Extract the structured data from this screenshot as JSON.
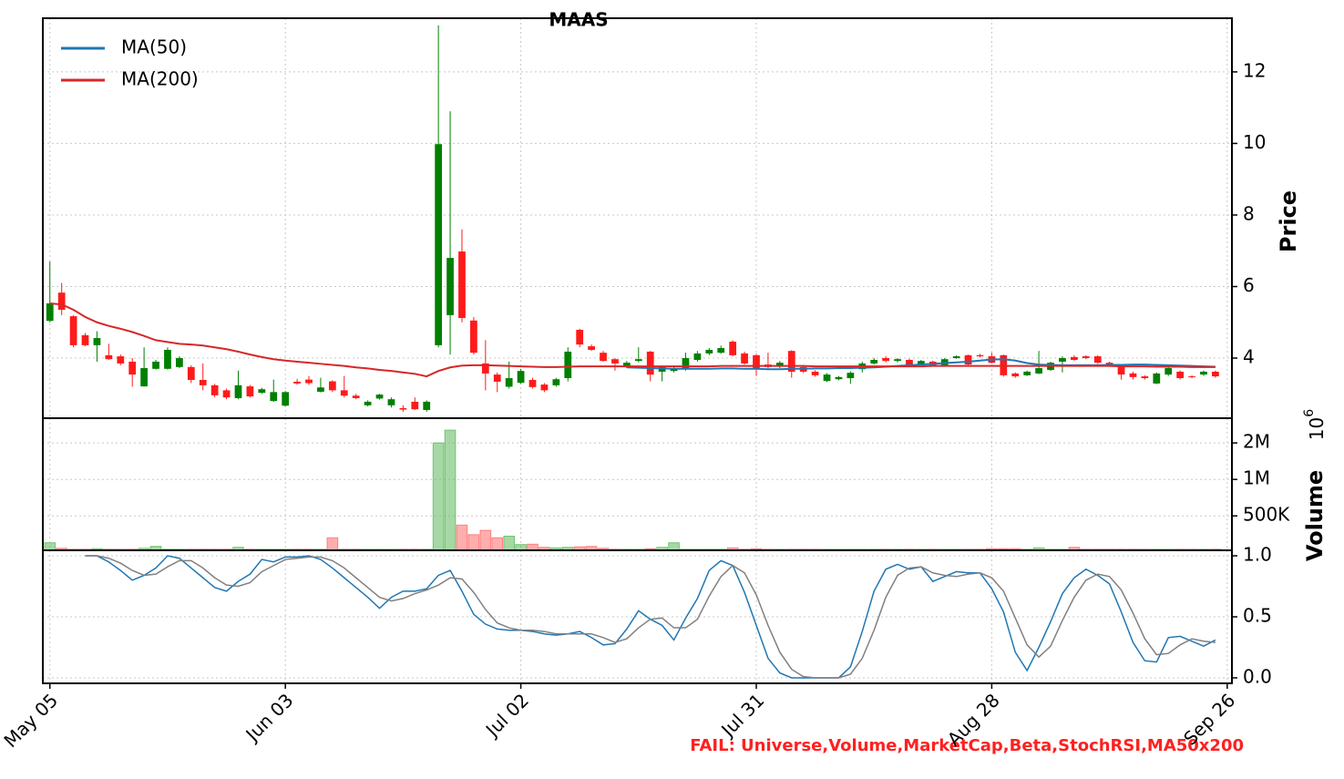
{
  "chart_data": {
    "type": "candlestick",
    "title": "MAAS",
    "xlim": [
      -0.6,
      100.4
    ],
    "xticks": [
      {
        "value": 0,
        "label": "May 05"
      },
      {
        "value": 20,
        "label": "Jun 03"
      },
      {
        "value": 40,
        "label": "Jul 02"
      },
      {
        "value": 60,
        "label": "Jul 31"
      },
      {
        "value": 80,
        "label": "Aug 28"
      },
      {
        "value": 100,
        "label": "Sep 26"
      }
    ],
    "grid": true,
    "price": {
      "ylabel": "Price",
      "ylim": [
        2.32,
        13.5
      ],
      "yticks": [
        4,
        6,
        8,
        10,
        12
      ],
      "up_color": "#008000",
      "down_color": "#ff1a1a",
      "legend": "upper left",
      "open": [
        5.04,
        5.83,
        5.17,
        4.64,
        4.36,
        4.08,
        4.05,
        3.9,
        3.21,
        3.7,
        3.7,
        3.75,
        3.75,
        3.39,
        3.24,
        3.1,
        2.88,
        3.21,
        3.03,
        2.8,
        2.67,
        3.34,
        3.4,
        3.06,
        3.35,
        3.1,
        2.95,
        2.68,
        2.87,
        2.68,
        2.6,
        2.78,
        2.55,
        4.36,
        5.2,
        6.98,
        5.05,
        3.85,
        3.54,
        3.2,
        3.31,
        3.39,
        3.26,
        3.24,
        3.44,
        4.79,
        4.33,
        4.15,
        3.97,
        3.77,
        3.92,
        4.18,
        3.62,
        3.64,
        3.69,
        3.95,
        4.13,
        4.15,
        4.46,
        4.13,
        4.08,
        3.82,
        3.77,
        4.2,
        3.75,
        3.62,
        3.36,
        3.41,
        3.44,
        3.69,
        3.85,
        4.0,
        3.92,
        3.95,
        3.82,
        3.9,
        3.8,
        4.0,
        4.08,
        4.08,
        4.05,
        4.08,
        3.57,
        3.52,
        3.57,
        3.67,
        3.9,
        4.03,
        4.05,
        4.05,
        3.87,
        3.77,
        3.57,
        3.49,
        3.29,
        3.54,
        3.62,
        3.49,
        3.54,
        3.62
      ],
      "high": [
        6.7,
        6.1,
        5.2,
        4.7,
        4.75,
        4.4,
        4.1,
        4.0,
        4.3,
        3.95,
        4.3,
        4.05,
        3.8,
        3.85,
        3.28,
        3.15,
        3.65,
        3.25,
        3.17,
        3.4,
        3.08,
        3.42,
        3.5,
        3.45,
        3.38,
        3.5,
        3.0,
        2.82,
        3.0,
        2.9,
        2.68,
        2.9,
        2.82,
        13.3,
        10.9,
        7.6,
        5.15,
        4.5,
        3.6,
        3.9,
        3.7,
        3.45,
        3.3,
        3.45,
        4.3,
        4.82,
        4.38,
        4.2,
        4.0,
        3.92,
        4.3,
        4.2,
        3.8,
        3.8,
        4.15,
        4.2,
        4.28,
        4.35,
        4.5,
        4.18,
        4.12,
        4.15,
        3.92,
        4.22,
        3.8,
        3.66,
        3.58,
        3.5,
        3.63,
        3.9,
        4.0,
        4.05,
        4.0,
        3.98,
        3.95,
        3.93,
        4.0,
        4.08,
        4.1,
        4.12,
        4.15,
        4.1,
        3.6,
        3.65,
        4.2,
        3.9,
        4.05,
        4.08,
        4.08,
        4.08,
        3.9,
        3.8,
        3.62,
        3.52,
        3.6,
        3.75,
        3.65,
        3.52,
        3.65,
        3.65
      ],
      "low": [
        5.0,
        5.2,
        4.3,
        4.33,
        3.9,
        3.95,
        3.8,
        3.2,
        3.2,
        3.68,
        3.68,
        3.72,
        3.3,
        3.1,
        2.9,
        2.85,
        2.85,
        2.9,
        3.0,
        2.78,
        2.65,
        3.25,
        3.25,
        3.04,
        3.05,
        2.9,
        2.85,
        2.65,
        2.84,
        2.62,
        2.5,
        2.55,
        2.5,
        4.3,
        4.1,
        5.0,
        4.1,
        3.1,
        3.05,
        3.15,
        3.28,
        3.15,
        3.05,
        3.2,
        3.35,
        4.3,
        4.2,
        3.9,
        3.65,
        3.72,
        3.88,
        3.35,
        3.35,
        3.6,
        3.65,
        3.9,
        4.08,
        4.12,
        4.05,
        3.82,
        3.5,
        3.7,
        3.72,
        3.45,
        3.58,
        3.48,
        3.33,
        3.38,
        3.28,
        3.6,
        3.82,
        3.88,
        3.88,
        3.78,
        3.8,
        3.76,
        3.77,
        3.98,
        3.8,
        4.02,
        3.85,
        3.48,
        3.45,
        3.5,
        3.55,
        3.64,
        3.6,
        3.92,
        3.97,
        3.84,
        3.78,
        3.4,
        3.4,
        3.4,
        3.27,
        3.5,
        3.4,
        3.44,
        3.5,
        3.45
      ],
      "close": [
        5.53,
        5.35,
        4.36,
        4.36,
        4.56,
        3.97,
        3.85,
        3.54,
        3.72,
        3.9,
        4.23,
        4.0,
        3.39,
        3.24,
        2.96,
        2.9,
        3.24,
        2.93,
        3.13,
        3.05,
        3.05,
        3.29,
        3.3,
        3.18,
        3.1,
        2.95,
        2.88,
        2.78,
        2.98,
        2.85,
        2.56,
        2.57,
        2.78,
        9.98,
        6.8,
        5.12,
        4.15,
        3.57,
        3.34,
        3.44,
        3.64,
        3.19,
        3.1,
        3.41,
        4.18,
        4.38,
        4.23,
        3.92,
        3.85,
        3.87,
        3.97,
        3.54,
        3.75,
        3.72,
        4.0,
        4.13,
        4.23,
        4.28,
        4.08,
        3.85,
        3.7,
        3.75,
        3.87,
        3.62,
        3.62,
        3.52,
        3.54,
        3.47,
        3.59,
        3.85,
        3.95,
        3.92,
        3.97,
        3.82,
        3.92,
        3.8,
        3.97,
        4.05,
        3.82,
        4.05,
        3.87,
        3.52,
        3.49,
        3.62,
        3.72,
        3.87,
        4.0,
        3.95,
        4.0,
        3.87,
        3.82,
        3.54,
        3.47,
        3.44,
        3.57,
        3.72,
        3.44,
        3.47,
        3.62,
        3.49
      ],
      "series": [
        {
          "name": "MA(50)",
          "color": "#1f77b4",
          "values": [
            null,
            null,
            null,
            null,
            null,
            null,
            null,
            null,
            null,
            null,
            null,
            null,
            null,
            null,
            null,
            null,
            null,
            null,
            null,
            null,
            null,
            null,
            null,
            null,
            null,
            null,
            null,
            null,
            null,
            null,
            null,
            null,
            null,
            null,
            null,
            null,
            null,
            null,
            null,
            null,
            null,
            null,
            null,
            null,
            null,
            null,
            null,
            null,
            null,
            3.74,
            3.73,
            3.72,
            3.71,
            3.7,
            3.7,
            3.7,
            3.7,
            3.71,
            3.71,
            3.7,
            3.7,
            3.69,
            3.69,
            3.7,
            3.7,
            3.71,
            3.71,
            3.72,
            3.72,
            3.73,
            3.74,
            3.76,
            3.78,
            3.8,
            3.82,
            3.84,
            3.86,
            3.88,
            3.9,
            3.93,
            3.96,
            3.97,
            3.93,
            3.86,
            3.82,
            3.81,
            3.8,
            3.8,
            3.8,
            3.8,
            3.81,
            3.81,
            3.82,
            3.82,
            3.81,
            3.8,
            3.79,
            3.78,
            3.77,
            3.76
          ]
        },
        {
          "name": "MA(200)",
          "color": "#d62728",
          "values": [
            5.53,
            5.5,
            5.35,
            5.15,
            5.0,
            4.9,
            4.82,
            4.73,
            4.62,
            4.5,
            4.45,
            4.4,
            4.38,
            4.35,
            4.3,
            4.25,
            4.18,
            4.1,
            4.03,
            3.97,
            3.93,
            3.9,
            3.87,
            3.84,
            3.81,
            3.78,
            3.74,
            3.71,
            3.67,
            3.64,
            3.6,
            3.56,
            3.49,
            3.64,
            3.74,
            3.79,
            3.8,
            3.8,
            3.79,
            3.78,
            3.77,
            3.76,
            3.75,
            3.75,
            3.76,
            3.77,
            3.77,
            3.77,
            3.77,
            3.77,
            3.77,
            3.77,
            3.77,
            3.77,
            3.77,
            3.77,
            3.77,
            3.78,
            3.78,
            3.78,
            3.78,
            3.78,
            3.78,
            3.78,
            3.78,
            3.77,
            3.77,
            3.77,
            3.77,
            3.77,
            3.77,
            3.77,
            3.77,
            3.77,
            3.77,
            3.78,
            3.78,
            3.78,
            3.78,
            3.78,
            3.78,
            3.78,
            3.78,
            3.78,
            3.78,
            3.78,
            3.78,
            3.78,
            3.78,
            3.78,
            3.78,
            3.77,
            3.77,
            3.77,
            3.76,
            3.76,
            3.76,
            3.75,
            3.75,
            3.75
          ]
        }
      ]
    },
    "volume": {
      "ylabel": "Volume",
      "offset_label": {
        "base": "10",
        "exponent": "6"
      },
      "log_scale": true,
      "ylim": [
        260000,
        3200000
      ],
      "yticks": [
        {
          "value": 500000,
          "label": "500K"
        },
        {
          "value": 1000000,
          "label": "1M"
        },
        {
          "value": 2000000,
          "label": "2M"
        }
      ],
      "up_color": "#5cb85c",
      "down_color": "#ff6b6b",
      "values": [
        300000,
        270000,
        265000,
        265000,
        268000,
        265000,
        265000,
        265000,
        270000,
        280000,
        265000,
        265000,
        265000,
        265000,
        265000,
        265000,
        275000,
        265000,
        265000,
        265000,
        265000,
        265000,
        265000,
        265000,
        330000,
        265000,
        265000,
        265000,
        265000,
        265000,
        265000,
        265000,
        265000,
        2000000,
        2550000,
        420000,
        350000,
        380000,
        330000,
        340000,
        290000,
        292000,
        275000,
        272000,
        275000,
        278000,
        280000,
        270000,
        265000,
        265000,
        265000,
        268000,
        275000,
        300000,
        265000,
        265000,
        265000,
        265000,
        272000,
        265000,
        268000,
        265000,
        265000,
        265000,
        265000,
        265000,
        265000,
        265000,
        265000,
        265000,
        265000,
        265000,
        265000,
        265000,
        265000,
        265000,
        265000,
        265000,
        265000,
        265000,
        268000,
        268000,
        268000,
        265000,
        272000,
        265000,
        265000,
        275000,
        265000,
        265000,
        265000,
        265000,
        265000,
        265000,
        265000,
        265000,
        265000,
        265000,
        265000,
        265000
      ]
    },
    "stoch": {
      "ylim": [
        -0.045,
        1.045
      ],
      "yticks": [
        {
          "value": 0,
          "label": "0.0"
        },
        0.5,
        {
          "value": 1,
          "label": "1.0"
        }
      ],
      "series": [
        {
          "color": "#1f77b4",
          "values": [
            null,
            null,
            null,
            1.0,
            1.0,
            0.95,
            0.88,
            0.8,
            0.84,
            0.9,
            1.0,
            0.98,
            0.9,
            0.82,
            0.74,
            0.71,
            0.79,
            0.85,
            0.97,
            0.95,
            0.99,
            0.99,
            1.0,
            0.97,
            0.9,
            0.82,
            0.74,
            0.66,
            0.57,
            0.66,
            0.71,
            0.71,
            0.73,
            0.84,
            0.88,
            0.71,
            0.52,
            0.44,
            0.4,
            0.39,
            0.39,
            0.38,
            0.36,
            0.35,
            0.36,
            0.38,
            0.33,
            0.27,
            0.28,
            0.4,
            0.55,
            0.48,
            0.43,
            0.31,
            0.49,
            0.65,
            0.88,
            0.96,
            0.92,
            0.7,
            0.43,
            0.16,
            0.04,
            0,
            0,
            0,
            0,
            0,
            0.09,
            0.38,
            0.71,
            0.89,
            0.93,
            0.89,
            0.91,
            0.79,
            0.83,
            0.87,
            0.86,
            0.86,
            0.73,
            0.54,
            0.21,
            0.06,
            0.25,
            0.46,
            0.69,
            0.82,
            0.89,
            0.84,
            0.77,
            0.54,
            0.29,
            0.14,
            0.13,
            0.33,
            0.34,
            0.3,
            0.26,
            0.31
          ]
        },
        {
          "color": "#808080",
          "values": [
            null,
            null,
            null,
            1.0,
            1.0,
            0.98,
            0.94,
            0.88,
            0.84,
            0.85,
            0.91,
            0.96,
            0.96,
            0.9,
            0.82,
            0.76,
            0.75,
            0.78,
            0.87,
            0.92,
            0.97,
            0.98,
            0.99,
            0.99,
            0.96,
            0.9,
            0.82,
            0.74,
            0.66,
            0.63,
            0.65,
            0.69,
            0.72,
            0.76,
            0.82,
            0.81,
            0.7,
            0.56,
            0.45,
            0.41,
            0.39,
            0.39,
            0.38,
            0.36,
            0.36,
            0.36,
            0.36,
            0.33,
            0.29,
            0.32,
            0.41,
            0.48,
            0.49,
            0.41,
            0.41,
            0.48,
            0.67,
            0.83,
            0.92,
            0.86,
            0.68,
            0.43,
            0.21,
            0.07,
            0.01,
            0,
            0,
            0,
            0.03,
            0.16,
            0.39,
            0.66,
            0.84,
            0.9,
            0.91,
            0.86,
            0.84,
            0.83,
            0.85,
            0.86,
            0.82,
            0.71,
            0.49,
            0.27,
            0.17,
            0.26,
            0.47,
            0.66,
            0.8,
            0.85,
            0.83,
            0.72,
            0.53,
            0.32,
            0.19,
            0.2,
            0.27,
            0.32,
            0.3,
            0.29
          ]
        }
      ]
    },
    "annotation": "FAIL: Universe,Volume,MarketCap,Beta,StochRSI,MA50x200"
  }
}
